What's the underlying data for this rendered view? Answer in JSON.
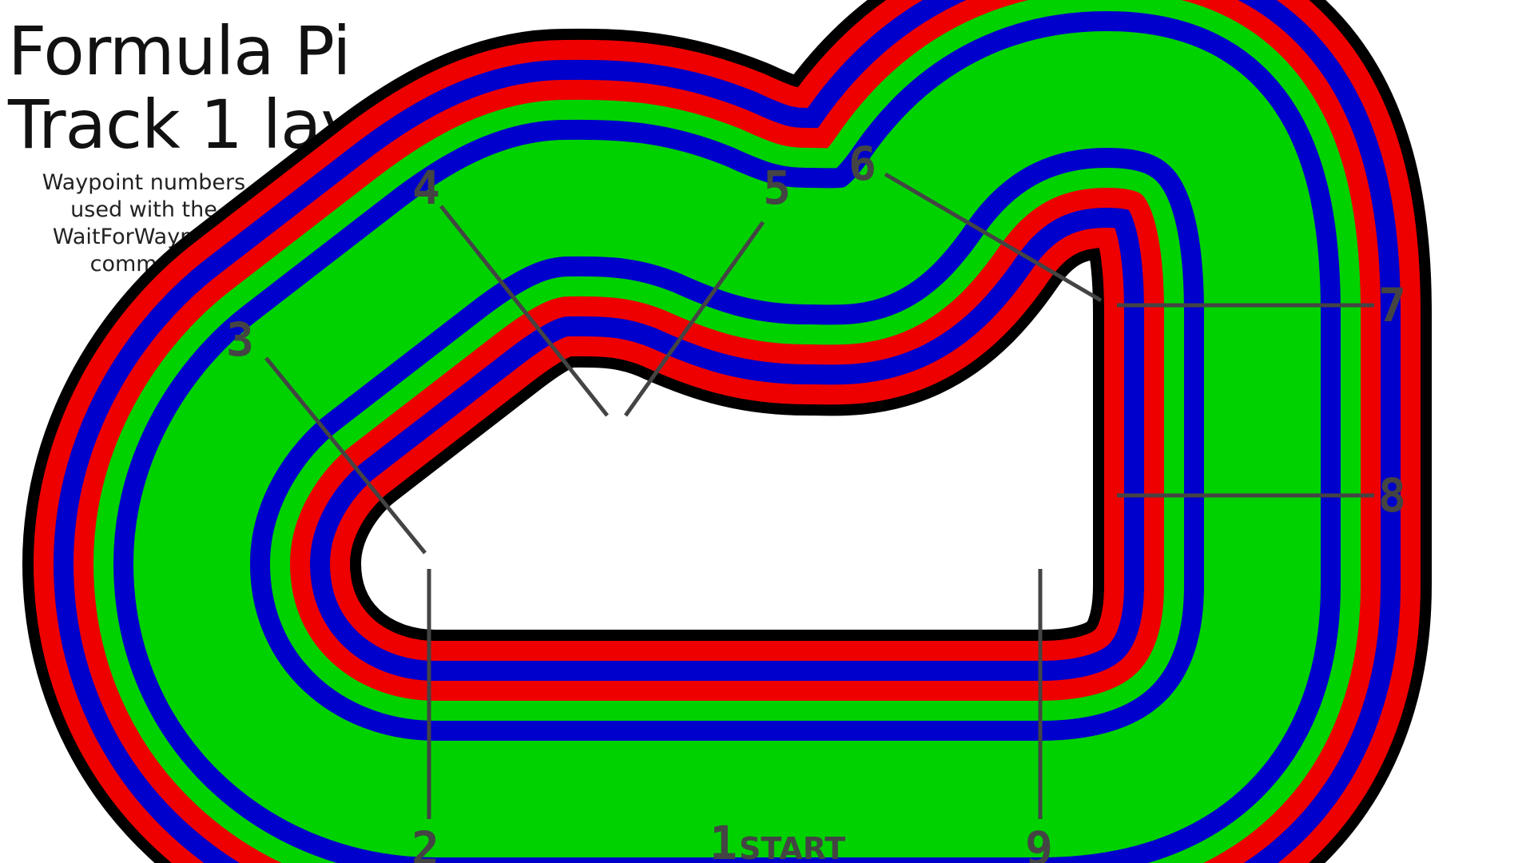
{
  "title": {
    "line1": "Formula Pi",
    "line2": "Track 1 layout"
  },
  "note": {
    "lines": [
      "Waypoint numbers",
      "used with the",
      "WaitForWaypoint",
      "command"
    ]
  },
  "track": {
    "lane_colors": [
      "#000000",
      "#ee0000",
      "#0000cc",
      "#ee0000",
      "#00d200",
      "#0000cc",
      "#00d200"
    ],
    "border_color": "#000000",
    "marker_color": "#444444"
  },
  "waypoints": [
    {
      "number": "1"
    },
    {
      "number": "2"
    },
    {
      "number": "3"
    },
    {
      "number": "4"
    },
    {
      "number": "5"
    },
    {
      "number": "6"
    },
    {
      "number": "7"
    },
    {
      "number": "8"
    },
    {
      "number": "9"
    }
  ],
  "start_label": "START"
}
